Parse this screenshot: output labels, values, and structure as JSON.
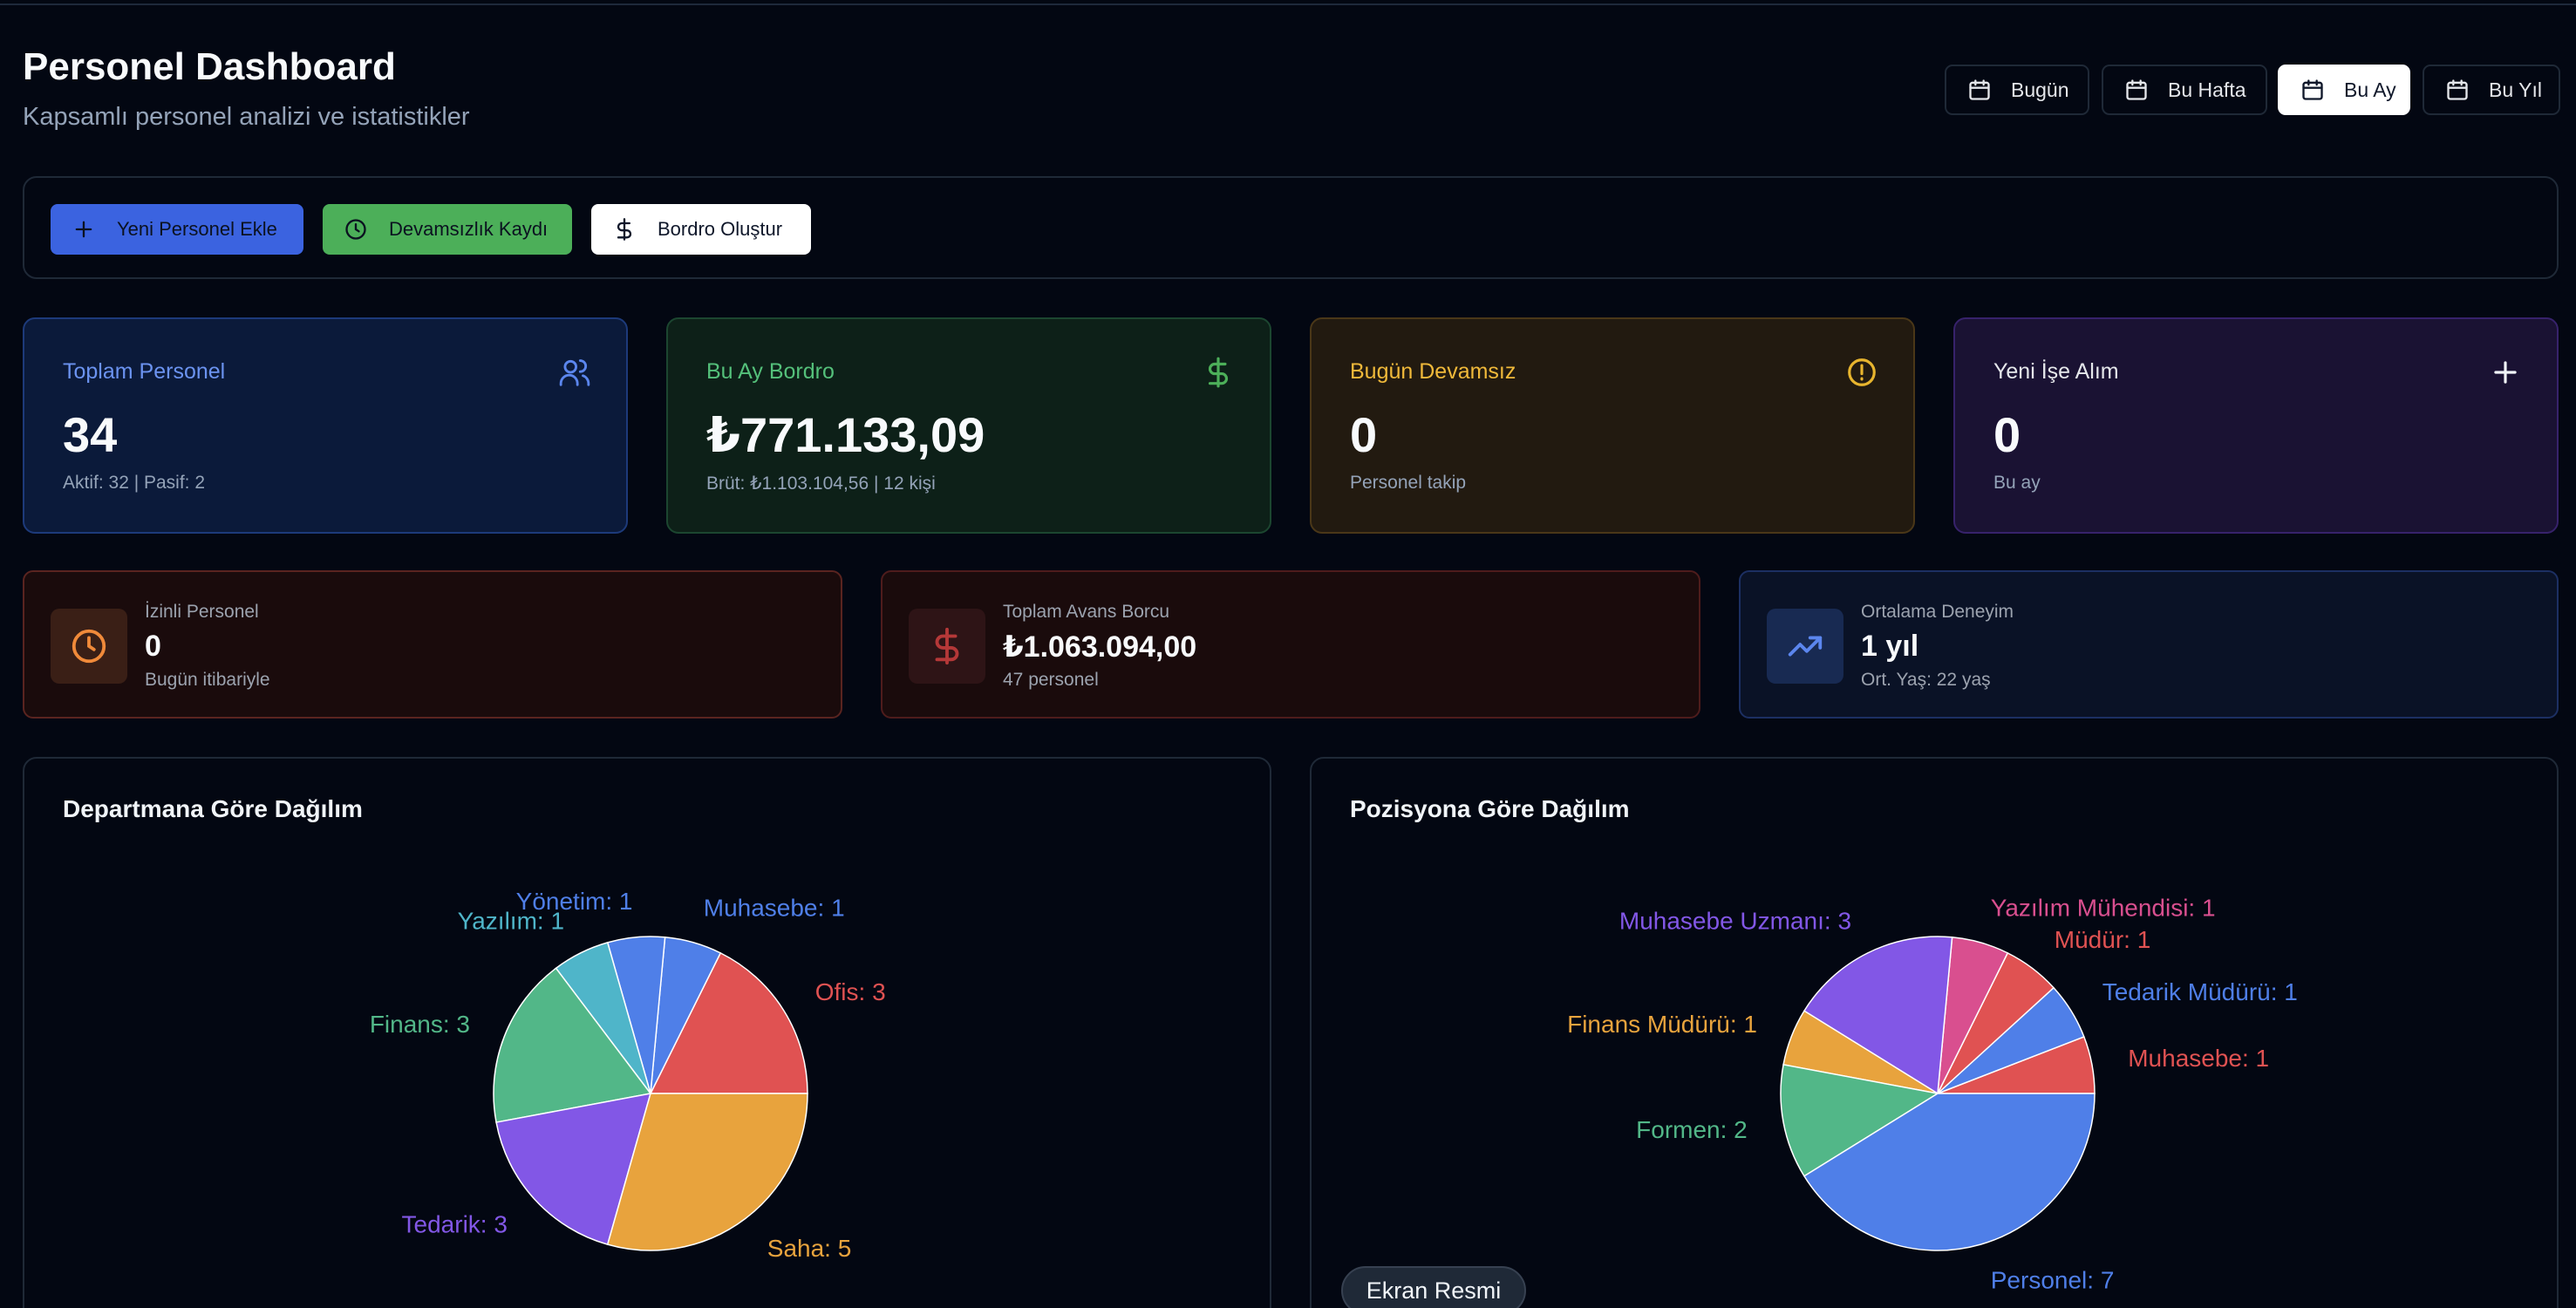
{
  "header": {
    "title": "Personel Dashboard",
    "subtitle": "Kapsamlı personel analizi ve istatistikler"
  },
  "date_ranges": {
    "today": "Bugün",
    "week": "Bu Hafta",
    "month": "Bu Ay",
    "year": "Bu Yıl",
    "selected": "Bu Ay"
  },
  "actions": {
    "add_personnel": "Yeni Personel Ekle",
    "absence_record": "Devamsızlık Kaydı",
    "create_payroll": "Bordro Oluştur"
  },
  "stats": {
    "total": {
      "label": "Toplam Personel",
      "value": "34",
      "sub": "Aktif: 32 | Pasif: 2",
      "icon": "users-icon"
    },
    "payroll": {
      "label": "Bu Ay Bordro",
      "value": "₺771.133,09",
      "sub": "Brüt: ₺1.103.104,56 | 12 kişi",
      "icon": "dollar-icon"
    },
    "absent": {
      "label": "Bugün Devamsız",
      "value": "0",
      "sub": "Personel takip",
      "icon": "alert-icon"
    },
    "hires": {
      "label": "Yeni İşe Alım",
      "value": "0",
      "sub": "Bu ay",
      "icon": "plus-icon"
    }
  },
  "mini_stats": {
    "leave": {
      "label": "İzinli Personel",
      "value": "0",
      "sub": "Bugün itibariyle",
      "icon": "clock-icon"
    },
    "advance": {
      "label": "Toplam Avans Borcu",
      "value": "₺1.063.094,00",
      "sub": "47 personel",
      "icon": "dollar-icon"
    },
    "experience": {
      "label": "Ortalama Deneyim",
      "value": "1 yıl",
      "sub": "Ort. Yaş: 22 yaş",
      "icon": "trend-icon"
    }
  },
  "colors": {
    "blue": "#4f7fe8",
    "red": "#e05252",
    "orange": "#e8a33d",
    "green": "#52b788",
    "purple": "#8257e6",
    "cyan": "#4fb5c9",
    "pink": "#d94f8f"
  },
  "chart_data": [
    {
      "type": "pie",
      "title": "Departmana Göre Dağılım",
      "slices": [
        {
          "label": "Ofis: 3",
          "name": "Ofis",
          "value": 3,
          "color": "#e05252"
        },
        {
          "label": "Muhasebe: 1",
          "name": "Muhasebe",
          "value": 1,
          "color": "#4f7fe8"
        },
        {
          "label": "Yönetim: 1",
          "name": "Yönetim",
          "value": 1,
          "color": "#4f7fe8"
        },
        {
          "label": "Yazılım: 1",
          "name": "Yazılım",
          "value": 1,
          "color": "#4fb5c9"
        },
        {
          "label": "Finans: 3",
          "name": "Finans",
          "value": 3,
          "color": "#52b788"
        },
        {
          "label": "Tedarik: 3",
          "name": "Tedarik",
          "value": 3,
          "color": "#8257e6"
        },
        {
          "label": "Saha: 5",
          "name": "Saha",
          "value": 5,
          "color": "#e8a33d"
        }
      ]
    },
    {
      "type": "pie",
      "title": "Pozisyona Göre Dağılım",
      "slices": [
        {
          "label": "Muhasebe: 1",
          "name": "Muhasebe",
          "value": 1,
          "color": "#e05252"
        },
        {
          "label": "Tedarik Müdürü: 1",
          "name": "Tedarik Müdürü",
          "value": 1,
          "color": "#4f7fe8"
        },
        {
          "label": "Müdür: 1",
          "name": "Müdür",
          "value": 1,
          "color": "#e05252"
        },
        {
          "label": "Yazılım Mühendisi: 1",
          "name": "Yazılım Mühendisi",
          "value": 1,
          "color": "#d94f8f"
        },
        {
          "label": "Muhasebe Uzmanı: 3",
          "name": "Muhasebe Uzmanı",
          "value": 3,
          "color": "#8257e6"
        },
        {
          "label": "Finans Müdürü: 1",
          "name": "Finans Müdürü",
          "value": 1,
          "color": "#e8a33d"
        },
        {
          "label": "Formen: 2",
          "name": "Formen",
          "value": 2,
          "color": "#52b788"
        },
        {
          "label": "Personel: 7",
          "name": "Personel",
          "value": 7,
          "color": "#4f7fe8"
        }
      ]
    }
  ],
  "screenshot_button": "Ekran Resmi"
}
